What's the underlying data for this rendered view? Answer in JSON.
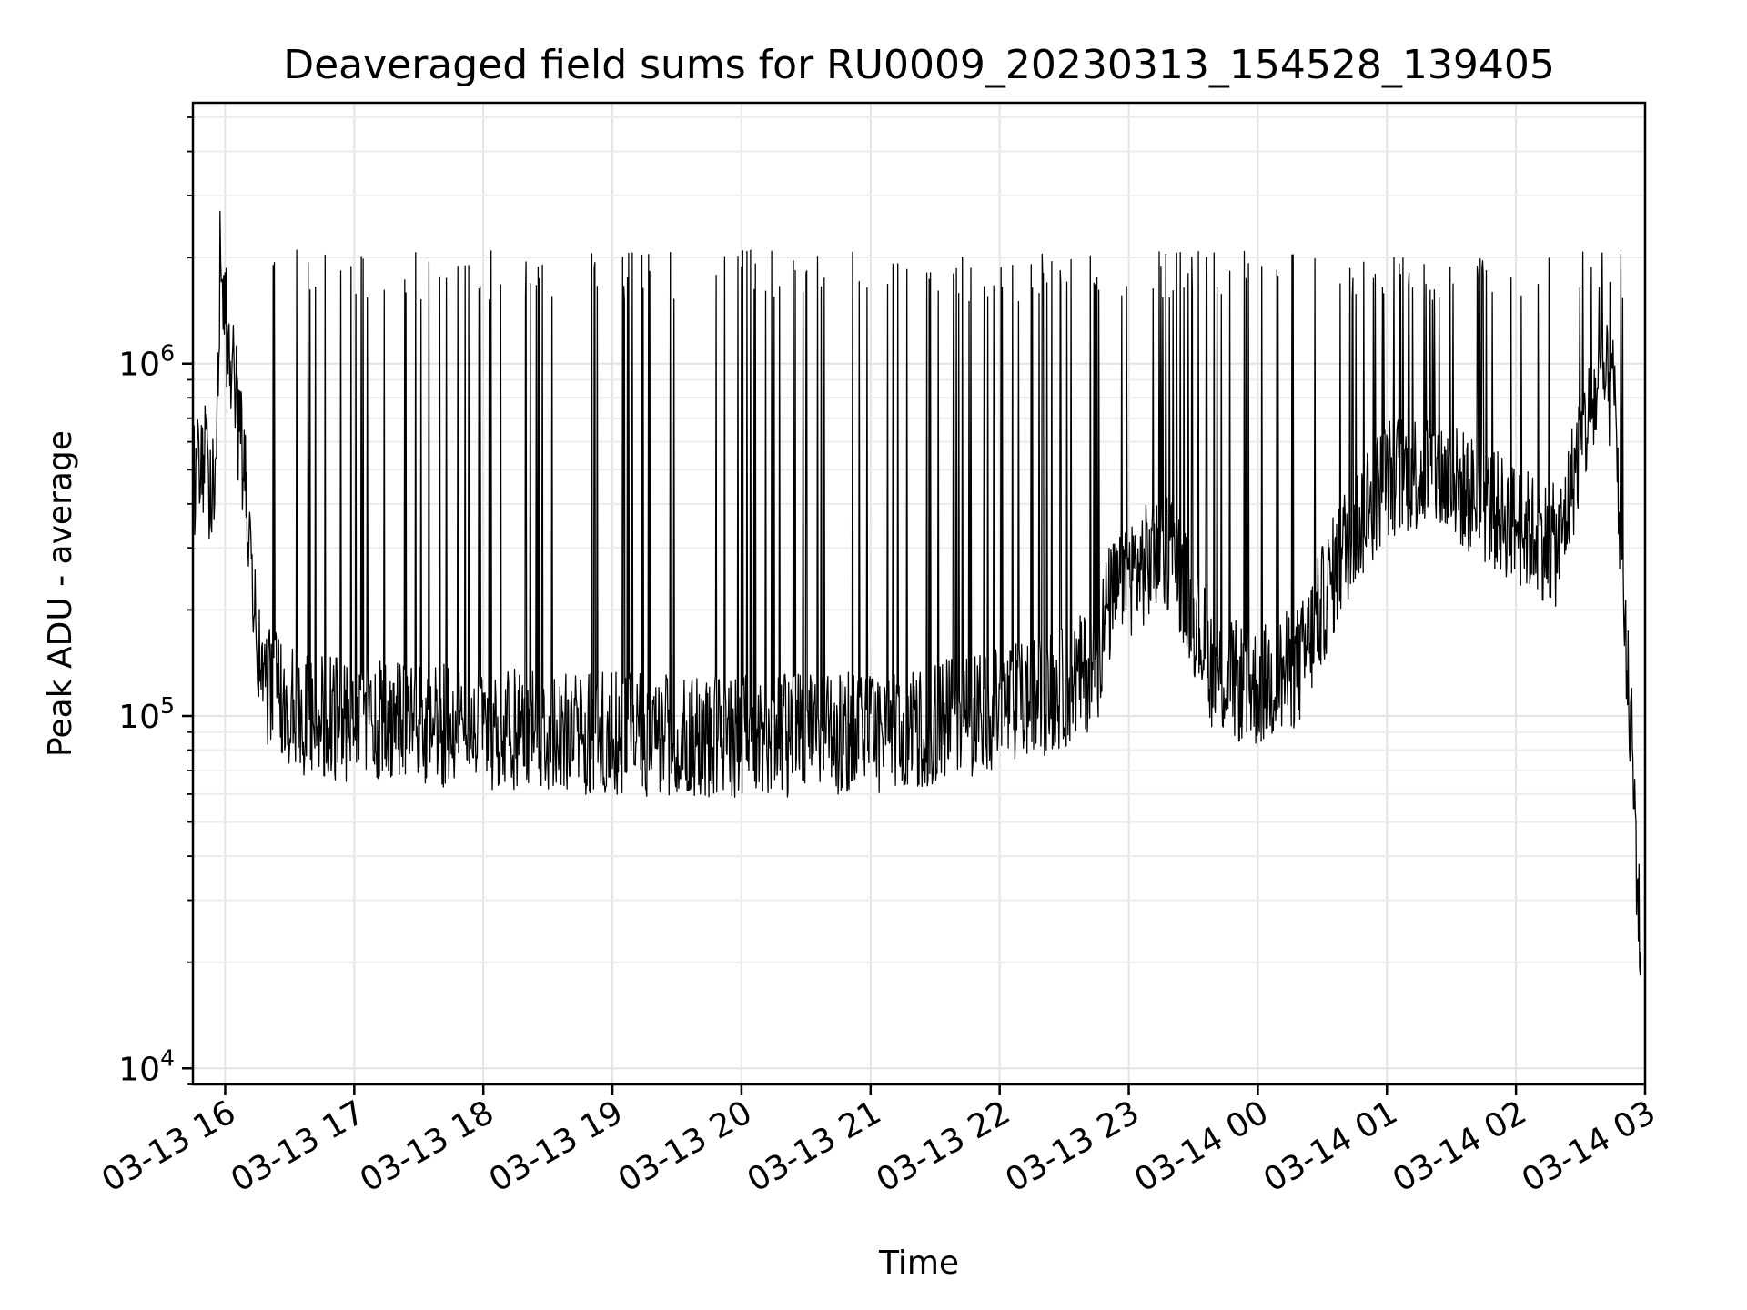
{
  "chart_data": {
    "type": "line",
    "title": "Deaveraged field sums for RU0009_20230313_154528_139405",
    "xlabel": "Time",
    "ylabel": "Peak ADU - average",
    "x_range": [
      "2023-03-13 15:45",
      "2023-03-14 03:00"
    ],
    "y_scale": "log",
    "ylim": [
      9000,
      5500000
    ],
    "grid": true,
    "line_color": "#000000",
    "x_ticks": [
      {
        "time": "2023-03-13 16:00",
        "label": "03-13 16"
      },
      {
        "time": "2023-03-13 17:00",
        "label": "03-13 17"
      },
      {
        "time": "2023-03-13 18:00",
        "label": "03-13 18"
      },
      {
        "time": "2023-03-13 19:00",
        "label": "03-13 19"
      },
      {
        "time": "2023-03-13 20:00",
        "label": "03-13 20"
      },
      {
        "time": "2023-03-13 21:00",
        "label": "03-13 21"
      },
      {
        "time": "2023-03-13 22:00",
        "label": "03-13 22"
      },
      {
        "time": "2023-03-13 23:00",
        "label": "03-13 23"
      },
      {
        "time": "2023-03-14 00:00",
        "label": "03-14 00"
      },
      {
        "time": "2023-03-14 01:00",
        "label": "03-14 01"
      },
      {
        "time": "2023-03-14 02:00",
        "label": "03-14 02"
      },
      {
        "time": "2023-03-14 03:00",
        "label": "03-14 03"
      }
    ],
    "y_ticks": [
      {
        "value": 10000,
        "base": "10",
        "exp": "4"
      },
      {
        "value": 100000,
        "base": "10",
        "exp": "5"
      },
      {
        "value": 1000000,
        "base": "10",
        "exp": "6"
      }
    ],
    "series": [
      {
        "x": [
          "2023-03-13 15:45",
          "2023-03-13 15:50",
          "2023-03-13 15:55",
          "2023-03-13 15:58",
          "2023-03-13 16:00",
          "2023-03-13 16:03",
          "2023-03-13 16:06",
          "2023-03-13 16:10",
          "2023-03-13 16:13",
          "2023-03-13 16:16",
          "2023-03-13 16:20",
          "2023-03-13 16:25",
          "2023-03-13 16:30",
          "2023-03-13 16:40",
          "2023-03-13 16:50",
          "2023-03-13 17:00",
          "2023-03-13 17:20",
          "2023-03-13 17:40",
          "2023-03-13 18:00",
          "2023-03-13 18:30",
          "2023-03-13 19:00",
          "2023-03-13 19:30",
          "2023-03-13 20:00",
          "2023-03-13 20:30",
          "2023-03-13 21:00",
          "2023-03-13 21:30",
          "2023-03-13 22:00",
          "2023-03-13 22:30",
          "2023-03-13 22:45",
          "2023-03-13 22:50",
          "2023-03-13 23:00",
          "2023-03-13 23:20",
          "2023-03-13 23:40",
          "2023-03-14 00:00",
          "2023-03-14 00:20",
          "2023-03-14 00:40",
          "2023-03-14 01:00",
          "2023-03-14 01:20",
          "2023-03-14 01:40",
          "2023-03-14 02:00",
          "2023-03-14 02:20",
          "2023-03-14 02:30",
          "2023-03-14 02:40",
          "2023-03-14 02:46",
          "2023-03-14 02:50",
          "2023-03-14 02:54",
          "2023-03-14 02:58"
        ],
        "y": [
          480000,
          520000,
          430000,
          2300000,
          1300000,
          1000000,
          700000,
          400000,
          200000,
          140000,
          120000,
          115000,
          105000,
          100000,
          98000,
          97000,
          96000,
          94000,
          92000,
          90000,
          89000,
          88000,
          88000,
          88000,
          90000,
          95000,
          105000,
          120000,
          140000,
          200000,
          250000,
          300000,
          130000,
          120000,
          140000,
          300000,
          480000,
          500000,
          420000,
          350000,
          300000,
          600000,
          900000,
          800000,
          180000,
          80000,
          20000
        ]
      }
    ]
  }
}
